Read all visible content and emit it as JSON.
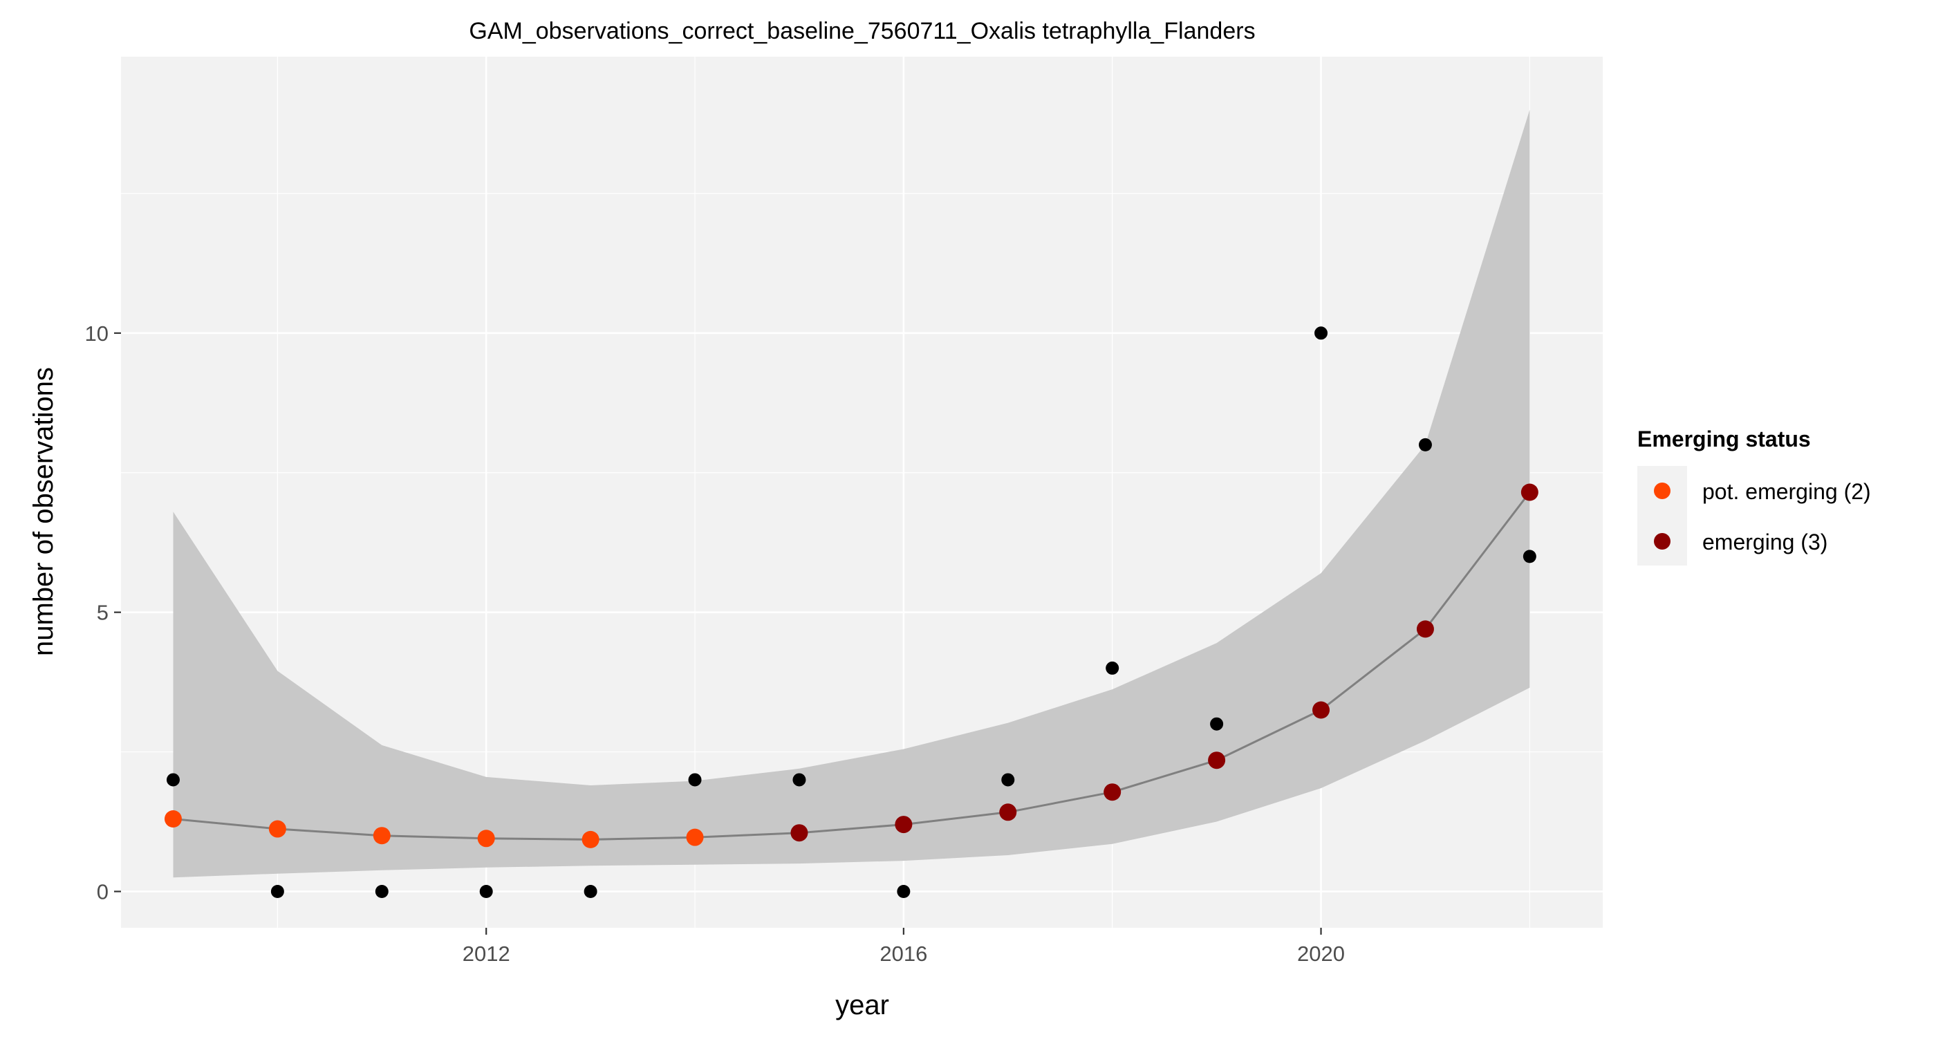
{
  "chart_data": {
    "type": "line",
    "title": "GAM_observations_correct_baseline_7560711_Oxalis tetraphylla_Flanders",
    "xlabel": "year",
    "ylabel": "number of observations",
    "xlim": [
      2008.5,
      2022.7
    ],
    "ylim": [
      -0.65,
      14.95
    ],
    "x_ticks": [
      2012,
      2016,
      2020
    ],
    "y_ticks": [
      0,
      5,
      10
    ],
    "grid": true,
    "legend": {
      "title": "Emerging status",
      "position": "right",
      "entries": [
        {
          "label": "pot. emerging (2)",
          "color": "#FF4500"
        },
        {
          "label": "emerging (3)",
          "color": "#8B0000"
        }
      ]
    },
    "observed": {
      "x": [
        2009,
        2010,
        2011,
        2012,
        2013,
        2014,
        2015,
        2016,
        2017,
        2018,
        2019,
        2020,
        2021,
        2022
      ],
      "y": [
        2,
        0,
        0,
        0,
        0,
        2,
        2,
        0,
        2,
        4,
        3,
        10,
        8,
        6
      ]
    },
    "fit": {
      "x": [
        2009,
        2010,
        2011,
        2012,
        2013,
        2014,
        2015,
        2016,
        2017,
        2018,
        2019,
        2020,
        2021,
        2022
      ],
      "y": [
        1.3,
        1.12,
        1.0,
        0.95,
        0.93,
        0.97,
        1.05,
        1.2,
        1.42,
        1.78,
        2.35,
        3.25,
        4.7,
        7.15
      ],
      "lower": [
        0.25,
        0.32,
        0.38,
        0.43,
        0.46,
        0.48,
        0.5,
        0.55,
        0.65,
        0.85,
        1.25,
        1.85,
        2.7,
        3.65
      ],
      "upper": [
        6.8,
        3.95,
        2.62,
        2.05,
        1.9,
        1.98,
        2.2,
        2.55,
        3.02,
        3.62,
        4.45,
        5.7,
        8.0,
        14.0
      ],
      "status": [
        "pot. emerging (2)",
        "pot. emerging (2)",
        "pot. emerging (2)",
        "pot. emerging (2)",
        "pot. emerging (2)",
        "pot. emerging (2)",
        "emerging (3)",
        "emerging (3)",
        "emerging (3)",
        "emerging (3)",
        "emerging (3)",
        "emerging (3)",
        "emerging (3)",
        "emerging (3)"
      ]
    },
    "colors": {
      "panel_background": "#F2F2F2",
      "grid_major": "#FFFFFF",
      "ribbon": "#C8C8C8",
      "fit_line": "#808080",
      "observed_point": "#000000"
    }
  }
}
